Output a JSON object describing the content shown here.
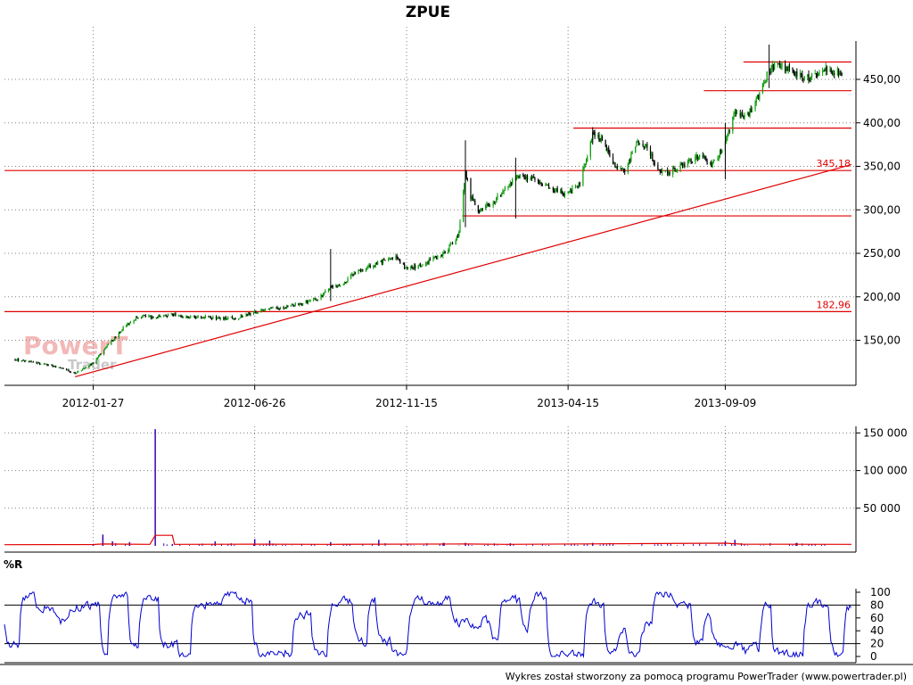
{
  "chart_data": [
    {
      "type": "candlestick",
      "title": "ZPUE",
      "x_tick_labels": [
        "2012-01-27",
        "2012-06-26",
        "2012-11-15",
        "2013-04-15",
        "2013-09-09"
      ],
      "y_tick_labels": [
        "150,00",
        "200,00",
        "250,00",
        "300,00",
        "350,00",
        "400,00",
        "450,00"
      ],
      "ylim": [
        110,
        490
      ],
      "grid": true,
      "price_path": [
        [
          "2011-11-15",
          128
        ],
        [
          "2011-12-01",
          125
        ],
        [
          "2011-12-15",
          122
        ],
        [
          "2011-12-28",
          118
        ],
        [
          "2012-01-10",
          112
        ],
        [
          "2012-01-27",
          124
        ],
        [
          "2012-02-10",
          145
        ],
        [
          "2012-02-25",
          165
        ],
        [
          "2012-03-10",
          178
        ],
        [
          "2012-03-25",
          176
        ],
        [
          "2012-04-10",
          180
        ],
        [
          "2012-04-25",
          176
        ],
        [
          "2012-05-10",
          177
        ],
        [
          "2012-05-25",
          175
        ],
        [
          "2012-06-10",
          176
        ],
        [
          "2012-06-26",
          182
        ],
        [
          "2012-07-10",
          186
        ],
        [
          "2012-07-25",
          188
        ],
        [
          "2012-08-10",
          193
        ],
        [
          "2012-08-25",
          198
        ],
        [
          "2012-09-05",
          212
        ],
        [
          "2012-09-15",
          212
        ],
        [
          "2012-09-28",
          228
        ],
        [
          "2012-10-12",
          235
        ],
        [
          "2012-10-26",
          242
        ],
        [
          "2012-11-05",
          245
        ],
        [
          "2012-11-15",
          232
        ],
        [
          "2012-11-28",
          236
        ],
        [
          "2012-12-10",
          244
        ],
        [
          "2012-12-20",
          250
        ],
        [
          "2013-01-03",
          272
        ],
        [
          "2013-01-09",
          345
        ],
        [
          "2013-01-14",
          315
        ],
        [
          "2013-01-22",
          298
        ],
        [
          "2013-02-05",
          310
        ],
        [
          "2013-02-18",
          328
        ],
        [
          "2013-03-01",
          340
        ],
        [
          "2013-03-12",
          336
        ],
        [
          "2013-03-22",
          328
        ],
        [
          "2013-04-04",
          322
        ],
        [
          "2013-04-15",
          318
        ],
        [
          "2013-04-26",
          330
        ],
        [
          "2013-05-08",
          388
        ],
        [
          "2013-05-18",
          380
        ],
        [
          "2013-05-28",
          352
        ],
        [
          "2013-06-08",
          345
        ],
        [
          "2013-06-18",
          378
        ],
        [
          "2013-06-28",
          372
        ],
        [
          "2013-07-08",
          345
        ],
        [
          "2013-07-18",
          342
        ],
        [
          "2013-08-01",
          352
        ],
        [
          "2013-08-15",
          362
        ],
        [
          "2013-08-28",
          352
        ],
        [
          "2013-09-09",
          375
        ],
        [
          "2013-09-18",
          415
        ],
        [
          "2013-09-28",
          405
        ],
        [
          "2013-10-08",
          425
        ],
        [
          "2013-10-18",
          455
        ],
        [
          "2013-10-26",
          468
        ],
        [
          "2013-11-05",
          462
        ],
        [
          "2013-11-15",
          455
        ],
        [
          "2013-11-25",
          452
        ],
        [
          "2013-12-05",
          458
        ],
        [
          "2013-12-15",
          462
        ],
        [
          "2013-12-27",
          456
        ]
      ],
      "spikes": [
        [
          "2012-09-05",
          195,
          255
        ],
        [
          "2013-01-09",
          280,
          380
        ],
        [
          "2013-02-25",
          290,
          360
        ],
        [
          "2013-05-08",
          375,
          395
        ],
        [
          "2013-09-09",
          335,
          400
        ],
        [
          "2013-10-20",
          440,
          490
        ]
      ],
      "horizontal_levels": [
        {
          "value": 345.18,
          "label": "345,18",
          "from": "2011-11-05",
          "to": "2014-01-05"
        },
        {
          "value": 182.96,
          "label": "182,96",
          "from": "2011-11-05",
          "to": "2014-01-05"
        },
        {
          "value": 293,
          "label": "",
          "from": "2013-01-06",
          "to": "2014-01-05"
        },
        {
          "value": 394,
          "label": "",
          "from": "2013-04-20",
          "to": "2014-01-05"
        },
        {
          "value": 437,
          "label": "",
          "from": "2013-08-20",
          "to": "2014-01-05"
        },
        {
          "value": 470,
          "label": "",
          "from": "2013-09-26",
          "to": "2014-01-05"
        }
      ],
      "trend_line": {
        "from": [
          "2012-01-10",
          108
        ],
        "to": [
          "2014-01-05",
          352
        ]
      }
    },
    {
      "type": "bar",
      "name": "volume",
      "y_tick_labels": [
        "50 000",
        "100 000",
        "150 000"
      ],
      "ylim": [
        0,
        160000
      ],
      "bars": [
        [
          "2012-01-27",
          2500
        ],
        [
          "2012-02-05",
          15000
        ],
        [
          "2012-02-14",
          6000
        ],
        [
          "2012-03-01",
          5000
        ],
        [
          "2012-03-25",
          155000
        ],
        [
          "2012-04-10",
          2500
        ],
        [
          "2012-05-20",
          6000
        ],
        [
          "2012-06-26",
          9000
        ],
        [
          "2012-07-10",
          7000
        ],
        [
          "2012-09-05",
          5000
        ],
        [
          "2012-10-20",
          8000
        ],
        [
          "2012-12-20",
          4000
        ],
        [
          "2013-01-09",
          4000
        ],
        [
          "2013-02-20",
          3500
        ],
        [
          "2013-05-08",
          4000
        ],
        [
          "2013-09-09",
          6000
        ],
        [
          "2013-09-18",
          8000
        ],
        [
          "2013-11-15",
          4000
        ]
      ],
      "moving_average": [
        [
          "2011-11-05",
          1500
        ],
        [
          "2012-01-27",
          1800
        ],
        [
          "2012-02-05",
          2500
        ],
        [
          "2012-03-20",
          2000
        ],
        [
          "2012-03-25",
          14000
        ],
        [
          "2012-04-10",
          14000
        ],
        [
          "2012-04-12",
          2000
        ],
        [
          "2012-06-26",
          2200
        ],
        [
          "2012-09-05",
          2000
        ],
        [
          "2013-01-09",
          2500
        ],
        [
          "2013-02-15",
          2000
        ],
        [
          "2013-09-09",
          3500
        ],
        [
          "2013-09-25",
          2200
        ],
        [
          "2014-01-05",
          2000
        ]
      ]
    },
    {
      "type": "line",
      "name": "%R",
      "label": "%R",
      "y_tick_labels": [
        "0",
        "20",
        "40",
        "60",
        "80",
        "100"
      ],
      "ylim": [
        0,
        100
      ],
      "reference_lines": [
        20,
        80
      ]
    }
  ],
  "footer": "Wykres został stworzony za pomocą programu PowerTrader (www.powertrader.pl)",
  "watermark": {
    "line1": "PowerT",
    "line2": "Trader"
  },
  "colors": {
    "up": "#0a9a0a",
    "down": "#000000",
    "levels": "#e00000",
    "willr": "#0000d0",
    "volume": "#3a00b0",
    "volume_ma": "#e00000"
  }
}
